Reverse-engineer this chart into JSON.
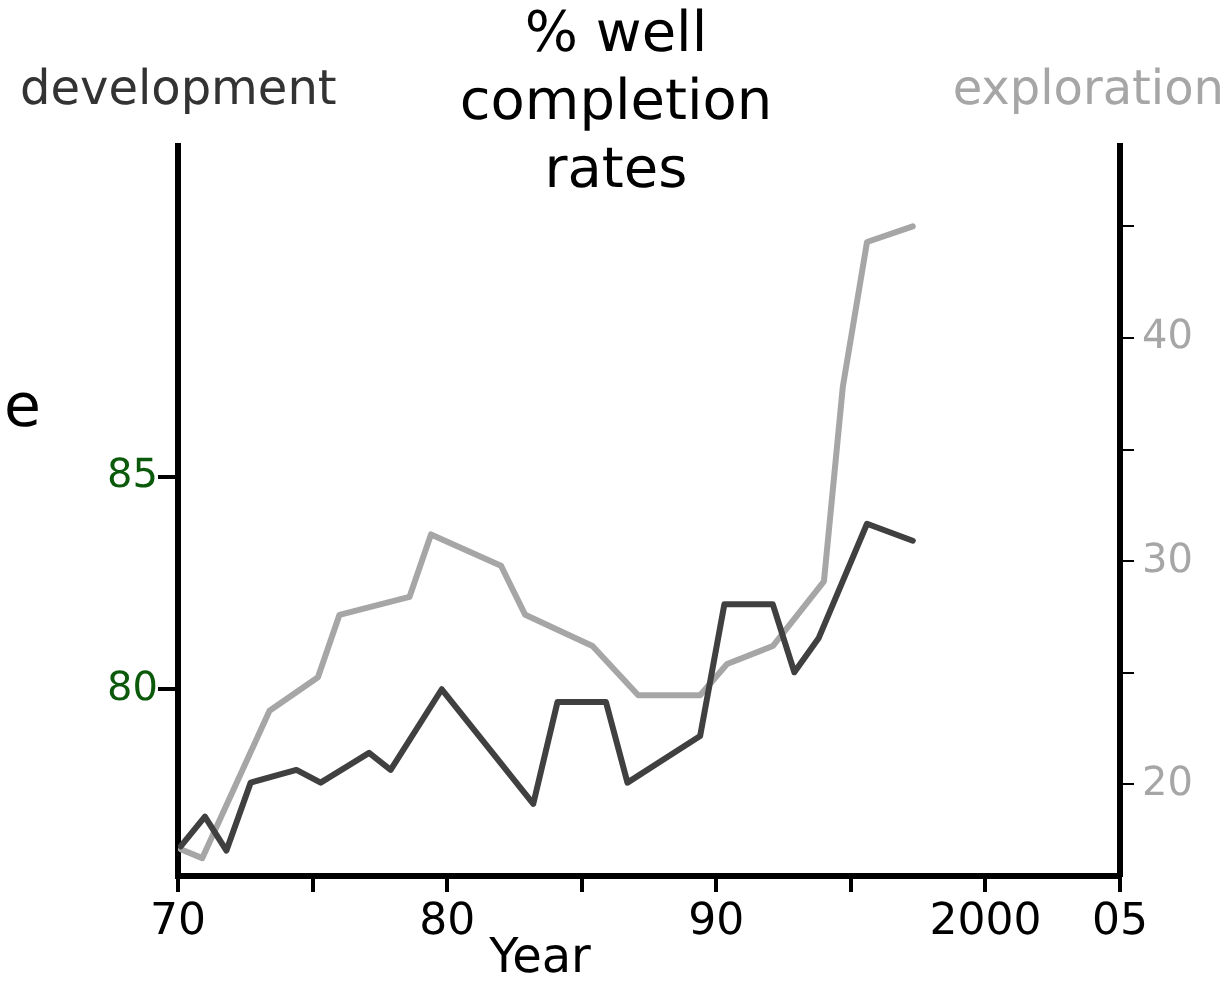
{
  "chart_data": {
    "type": "line",
    "title": "% well\ncompletion\nrates",
    "xlabel": "Year",
    "ylabel": "development",
    "y2label": "exploration",
    "annotations": [
      "e"
    ],
    "xlim": [
      1970,
      2005
    ],
    "xticks": [
      {
        "value": 1970,
        "label": "70"
      },
      {
        "value": 1975,
        "label": null
      },
      {
        "value": 1980,
        "label": "80"
      },
      {
        "value": 1985,
        "label": null
      },
      {
        "value": 1990,
        "label": "90"
      },
      {
        "value": 1995,
        "label": null
      },
      {
        "value": 2000,
        "label": "2000"
      },
      {
        "value": 2005,
        "label": "05"
      }
    ],
    "ylim": [
      75.6,
      92.8
    ],
    "yticks": [
      80,
      85
    ],
    "y2lim": [
      15.9,
      48.6
    ],
    "y2ticks": [
      20,
      {
        "value": 25,
        "label": null
      },
      30,
      {
        "value": 35,
        "label": null
      },
      40,
      {
        "value": 45,
        "label": null
      }
    ],
    "grid": false,
    "legend": false,
    "marker": "none",
    "line_style": "solid",
    "series": [
      {
        "color": "#404040",
        "axis": "y",
        "x": [
          1970.1,
          1971,
          1971.8,
          1972.7,
          1974.4,
          1975.3,
          1977.1,
          1977.9,
          1979.8,
          1983.2,
          1984.1,
          1985.9,
          1986.7,
          1989.4,
          1990.3,
          1992.1,
          1992.9,
          1993.8,
          1995.6,
          1997.3
        ],
        "values": [
          76.3,
          77.0,
          76.2,
          77.8,
          78.1,
          77.8,
          78.5,
          78.1,
          80.0,
          77.3,
          79.7,
          79.7,
          77.8,
          78.9,
          82.0,
          82.0,
          80.4,
          81.2,
          83.9,
          83.5
        ]
      },
      {
        "color": "#a6a6a6",
        "axis": "y2",
        "x": [
          1970.1,
          1970.9,
          1973.4,
          1975.2,
          1976.0,
          1978.6,
          1979.4,
          1982.0,
          1982.9,
          1985.4,
          1987.1,
          1989.4,
          1990.4,
          1992.1,
          1994.0,
          1994.7,
          1995.6,
          1997.3
        ],
        "values": [
          17.1,
          16.7,
          23.3,
          24.8,
          27.6,
          28.4,
          31.2,
          29.8,
          27.6,
          26.2,
          24.0,
          24.0,
          25.4,
          26.2,
          29.1,
          37.8,
          44.3,
          45.0
        ]
      }
    ]
  }
}
